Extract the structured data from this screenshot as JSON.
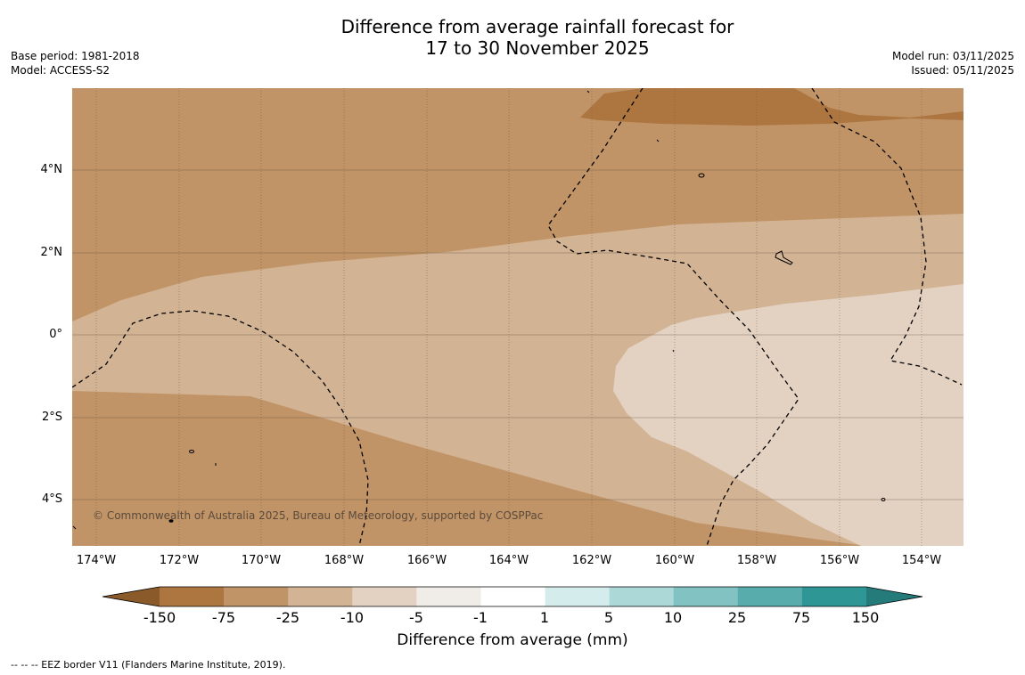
{
  "title_line1": "Difference from average rainfall forecast for",
  "title_line2": "17 to 30 November 2025",
  "base_period": "Base period: 1981-2018",
  "model": "Model: ACCESS-S2",
  "model_run": "Model run: 03/11/2025",
  "issued": "Issued: 05/11/2025",
  "lat_labels": [
    "4°N",
    "2°N",
    "0°",
    "2°S",
    "4°S"
  ],
  "lon_labels": [
    "174°W",
    "172°W",
    "170°W",
    "168°W",
    "166°W",
    "164°W",
    "162°W",
    "160°W",
    "158°W",
    "156°W",
    "154°W"
  ],
  "copyright": "© Commonwealth of Australia 2025, Bureau of Meteorology, supported by COSPPac",
  "colorbar": {
    "labels": [
      "-150",
      "-75",
      "-25",
      "-10",
      "-5",
      "-1",
      "1",
      "5",
      "10",
      "25",
      "75",
      "150"
    ],
    "colors": [
      "#8b5a2b",
      "#ad7640",
      "#c19468",
      "#d2b394",
      "#e3d2c2",
      "#f0ece8",
      "#ffffff",
      "#d5ecec",
      "#acd8d8",
      "#82c2c2",
      "#58acac",
      "#2f9696",
      "#257a7a"
    ],
    "title": "Difference from average (mm)"
  },
  "legend_note": "--  --  -- EEZ border V11 (Flanders Marine Institute, 2019).",
  "chart_data": {
    "type": "heatmap",
    "variable": "Difference from average rainfall (mm)",
    "lon_range": [
      "174.6°W",
      "153.1°W"
    ],
    "lat_range": [
      "5.1°S",
      "6°N"
    ],
    "levels": [
      -150,
      -75,
      -25,
      -10,
      -5,
      -1,
      1,
      5,
      10,
      25,
      75,
      150
    ],
    "regions": [
      {
        "category": "-75 to -25",
        "description": "north and southwest"
      },
      {
        "category": "-150 to -75",
        "description": "patch near 159°W, 5.5°N"
      },
      {
        "category": "-25 to -10",
        "description": "central band"
      },
      {
        "category": "-10 to -5",
        "description": "southeast, east of 162°W"
      }
    ]
  }
}
